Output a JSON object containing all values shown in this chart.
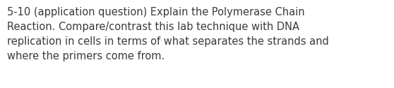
{
  "text": "5-10 (application question) Explain the Polymerase Chain\nReaction. Compare/contrast this lab technique with DNA\nreplication in cells in terms of what separates the strands and\nwhere the primers come from.",
  "background_color": "#ffffff",
  "text_color": "#3a3a3a",
  "font_size": 10.5,
  "fig_width": 5.58,
  "fig_height": 1.26,
  "dpi": 100
}
